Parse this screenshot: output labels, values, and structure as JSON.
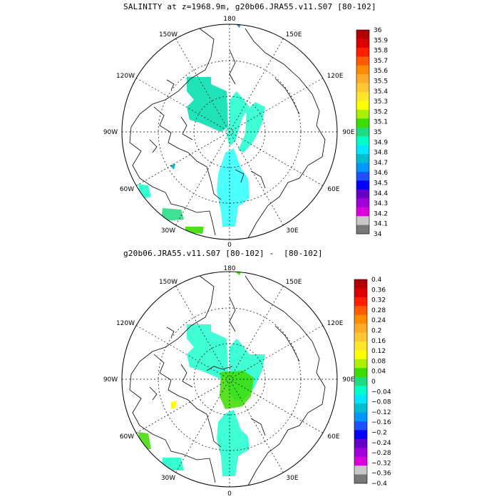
{
  "panels": [
    {
      "title": "SALINITY at z=1968.9m, g20b06.JRA55.v11.S07 [80-102]",
      "lon_labels": {
        "top": "180",
        "top_left": "150W",
        "top_right": "150E",
        "upper_left": "120W",
        "upper_right": "120E",
        "left": "90W",
        "right": "90E",
        "lower_left": "60W",
        "lower_right": "60E",
        "bottom_left": "30W",
        "bottom_right": "30E",
        "bottom": "0"
      },
      "colorbar": {
        "labels": [
          "36",
          "35.9",
          "35.8",
          "35.7",
          "35.6",
          "35.5",
          "35.4",
          "35.3",
          "35.2",
          "35.1",
          "35",
          "34.9",
          "34.8",
          "34.7",
          "34.6",
          "34.5",
          "34.4",
          "34.3",
          "34.2",
          "34.1",
          "34"
        ],
        "colors": [
          "#b40000",
          "#dc0000",
          "#ff1e00",
          "#ff5a00",
          "#ff8c00",
          "#ffaa28",
          "#ffc832",
          "#ffe628",
          "#ffff00",
          "#aaf000",
          "#3cdc00",
          "#1edc82",
          "#00ffc8",
          "#00e6ff",
          "#00bed2",
          "#0096ff",
          "#1e50ff",
          "#0000ff",
          "#6400c8",
          "#a000dc",
          "#dc00dc",
          "#c8c8c8",
          "#787878"
        ]
      }
    },
    {
      "title": "g20b06.JRA55.v11.S07 [80-102] -  [80-102]",
      "lon_labels": {
        "top": "180",
        "top_left": "150W",
        "top_right": "150E",
        "upper_left": "120W",
        "upper_right": "120E",
        "left": "90W",
        "right": "90E",
        "lower_left": "60W",
        "lower_right": "60E",
        "bottom_left": "30W",
        "bottom_right": "30E",
        "bottom": "0"
      },
      "colorbar": {
        "labels": [
          "0.4",
          "0.36",
          "0.32",
          "0.28",
          "0.24",
          "0.2",
          "0.16",
          "0.12",
          "0.08",
          "0.04",
          "0",
          "−0.04",
          "−0.08",
          "−0.12",
          "−0.16",
          "−0.2",
          "−0.24",
          "−0.28",
          "−0.32",
          "−0.36",
          "−0.4"
        ],
        "colors": [
          "#b40000",
          "#dc0000",
          "#ff1e00",
          "#ff5a00",
          "#ff8c00",
          "#ffaa28",
          "#ffc832",
          "#ffe628",
          "#ffff00",
          "#aaf000",
          "#3cdc00",
          "#1edc82",
          "#00ffc8",
          "#00e6ff",
          "#00bed2",
          "#0096ff",
          "#1e50ff",
          "#0000ff",
          "#6400c8",
          "#a000dc",
          "#dc00dc",
          "#c8c8c8",
          "#787878"
        ]
      }
    }
  ]
}
